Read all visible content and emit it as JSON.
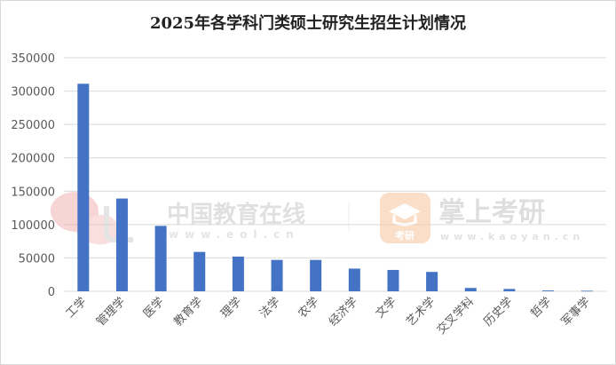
{
  "colors": {
    "bar": "#4472c4",
    "grid": "#d9d9d9",
    "text": "#595959",
    "title": "#222222"
  },
  "watermarks": {
    "left_brand": "中国教育在线",
    "left_url": "www.eol.cn",
    "right_brand": "掌上考研",
    "right_url": "www.kaoyan.cn",
    "badge_text": "考研"
  },
  "chart_data": {
    "type": "bar",
    "title": "2025年各学科门类硕士研究生招生计划情况",
    "xlabel": "",
    "ylabel": "",
    "categories": [
      "工学",
      "管理学",
      "医学",
      "教育学",
      "理学",
      "法学",
      "农学",
      "经济学",
      "文学",
      "艺术学",
      "交叉学科",
      "历史学",
      "哲学",
      "军事学"
    ],
    "values": [
      311000,
      139000,
      98000,
      59000,
      52000,
      47000,
      47000,
      34000,
      32000,
      29000,
      5000,
      3500,
      1200,
      800
    ],
    "ylim": [
      0,
      350000
    ],
    "yticks": [
      0,
      50000,
      100000,
      150000,
      200000,
      250000,
      300000,
      350000
    ],
    "grid": true,
    "legend": "none"
  }
}
